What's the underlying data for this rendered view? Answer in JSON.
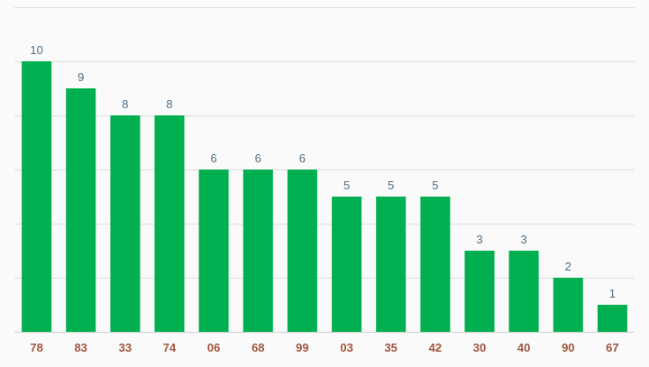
{
  "chart_data": {
    "type": "bar",
    "categories": [
      "78",
      "83",
      "33",
      "74",
      "06",
      "68",
      "99",
      "03",
      "35",
      "42",
      "30",
      "40",
      "90",
      "67"
    ],
    "values": [
      10,
      9,
      8,
      8,
      6,
      6,
      6,
      5,
      5,
      5,
      3,
      3,
      2,
      1
    ],
    "ylim": [
      0,
      12
    ],
    "y_grid_step": 2,
    "grid": true,
    "show_data_labels": true,
    "colors": {
      "bar": "#00b050",
      "value_label": "#4f6f86",
      "category_label": "#a0563e",
      "grid": "#dddddd",
      "background": "#fafafa"
    }
  }
}
